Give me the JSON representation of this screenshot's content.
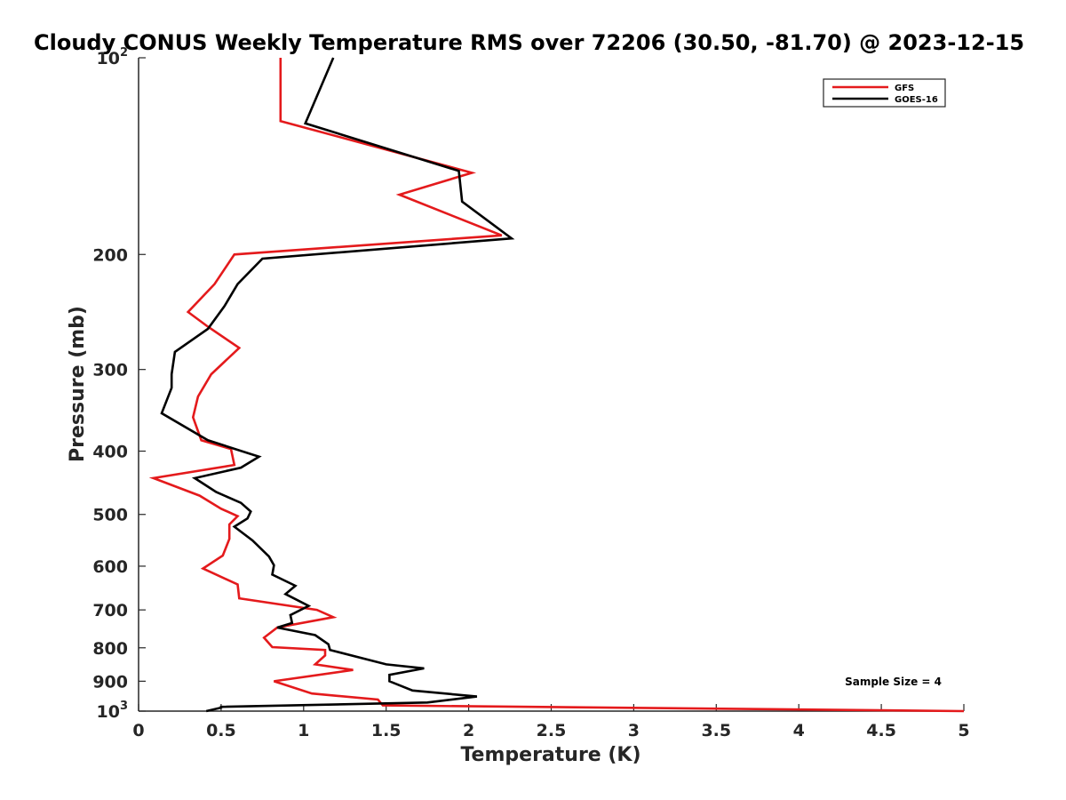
{
  "chart_data": {
    "type": "line",
    "title": "Cloudy CONUS Weekly Temperature RMS over 72206 (30.50, -81.70) @ 2023-12-15",
    "xlabel": "Temperature (K)",
    "ylabel": "Pressure (mb)",
    "xlim": [
      0,
      5
    ],
    "ylim": [
      100,
      1000
    ],
    "y_scale": "log",
    "y_reversed": true,
    "x_ticks": [
      "0",
      "0.5",
      "1",
      "1.5",
      "2",
      "2.5",
      "3",
      "3.5",
      "4",
      "4.5",
      "5"
    ],
    "y_ticks": [
      {
        "value": 100,
        "label": "10",
        "sup": "2"
      },
      {
        "value": 200,
        "label": "200",
        "sup": ""
      },
      {
        "value": 300,
        "label": "300",
        "sup": ""
      },
      {
        "value": 400,
        "label": "400",
        "sup": ""
      },
      {
        "value": 500,
        "label": "500",
        "sup": ""
      },
      {
        "value": 600,
        "label": "600",
        "sup": ""
      },
      {
        "value": 700,
        "label": "700",
        "sup": ""
      },
      {
        "value": 800,
        "label": "800",
        "sup": ""
      },
      {
        "value": 900,
        "label": "900",
        "sup": ""
      },
      {
        "value": 1000,
        "label": "10",
        "sup": "3"
      }
    ],
    "grid": false,
    "legend_position": "top-right",
    "annotation": "Sample Size = 4",
    "series": [
      {
        "name": "GFS",
        "color": "#e41a1c",
        "points": [
          [
            0.86,
            100
          ],
          [
            0.86,
            125
          ],
          [
            2.02,
            150
          ],
          [
            1.58,
            162
          ],
          [
            2.2,
            187
          ],
          [
            0.58,
            200
          ],
          [
            0.46,
            222
          ],
          [
            0.3,
            245
          ],
          [
            0.42,
            258
          ],
          [
            0.61,
            278
          ],
          [
            0.44,
            305
          ],
          [
            0.36,
            330
          ],
          [
            0.33,
            355
          ],
          [
            0.38,
            385
          ],
          [
            0.56,
            397
          ],
          [
            0.58,
            420
          ],
          [
            0.09,
            440
          ],
          [
            0.37,
            468
          ],
          [
            0.5,
            490
          ],
          [
            0.6,
            503
          ],
          [
            0.55,
            518
          ],
          [
            0.55,
            545
          ],
          [
            0.51,
            578
          ],
          [
            0.39,
            605
          ],
          [
            0.6,
            640
          ],
          [
            0.61,
            672
          ],
          [
            1.08,
            700
          ],
          [
            1.18,
            718
          ],
          [
            0.84,
            745
          ],
          [
            0.76,
            772
          ],
          [
            0.81,
            798
          ],
          [
            1.13,
            806
          ],
          [
            1.13,
            822
          ],
          [
            1.07,
            848
          ],
          [
            1.3,
            865
          ],
          [
            0.82,
            900
          ],
          [
            1.05,
            940
          ],
          [
            1.45,
            960
          ],
          [
            1.48,
            980
          ],
          [
            5.0,
            1000
          ]
        ]
      },
      {
        "name": "GOES-16",
        "color": "#000000",
        "points": [
          [
            1.18,
            100
          ],
          [
            1.01,
            126
          ],
          [
            1.94,
            149
          ],
          [
            1.96,
            166
          ],
          [
            2.26,
            189
          ],
          [
            0.75,
            203
          ],
          [
            0.6,
            222
          ],
          [
            0.52,
            240
          ],
          [
            0.42,
            260
          ],
          [
            0.22,
            282
          ],
          [
            0.2,
            305
          ],
          [
            0.2,
            320
          ],
          [
            0.14,
            350
          ],
          [
            0.42,
            385
          ],
          [
            0.73,
            408
          ],
          [
            0.62,
            424
          ],
          [
            0.34,
            440
          ],
          [
            0.47,
            462
          ],
          [
            0.62,
            480
          ],
          [
            0.68,
            495
          ],
          [
            0.66,
            507
          ],
          [
            0.58,
            522
          ],
          [
            0.69,
            548
          ],
          [
            0.79,
            580
          ],
          [
            0.82,
            598
          ],
          [
            0.81,
            618
          ],
          [
            0.95,
            643
          ],
          [
            0.89,
            662
          ],
          [
            1.03,
            690
          ],
          [
            0.92,
            713
          ],
          [
            0.93,
            733
          ],
          [
            0.84,
            745
          ],
          [
            1.07,
            765
          ],
          [
            1.15,
            790
          ],
          [
            1.16,
            806
          ],
          [
            1.5,
            848
          ],
          [
            1.73,
            860
          ],
          [
            1.52,
            880
          ],
          [
            1.52,
            900
          ],
          [
            1.66,
            930
          ],
          [
            2.05,
            950
          ],
          [
            1.75,
            970
          ],
          [
            0.5,
            985
          ],
          [
            0.5,
            988
          ],
          [
            0.41,
            1000
          ]
        ]
      }
    ]
  }
}
